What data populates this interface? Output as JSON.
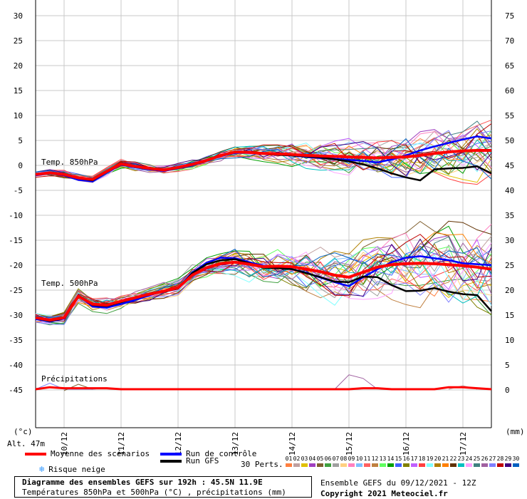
{
  "chart_data": {
    "type": "line",
    "title": "Diagramme des ensembles GEFS sur 192h : 45.5N 11.9E",
    "subtitle": "Températures 850hPa et 500hPa (°C) , précipitations (mm)",
    "run_label": "Ensemble GEFS du 09/12/2021 - 12Z",
    "copyright": "Copyright 2021 Meteociel.fr",
    "altitude_label": "Alt. 47m",
    "left_unit": "(°c)",
    "right_unit": "(mm)",
    "left_axis_ticks": [
      30,
      25,
      20,
      15,
      10,
      5,
      0,
      -5,
      -10,
      -15,
      -20,
      -25,
      -30,
      -35,
      -40,
      -45
    ],
    "right_axis_ticks": [
      75,
      70,
      65,
      60,
      55,
      50,
      45,
      40,
      35,
      30,
      25,
      20,
      15,
      10,
      5,
      0
    ],
    "date_labels": [
      "10/12",
      "11/12",
      "12/12",
      "13/12",
      "14/12",
      "15/12",
      "16/12",
      "17/12"
    ],
    "x_hours_range": [
      0,
      192
    ],
    "date_hours": [
      12,
      36,
      60,
      84,
      108,
      132,
      156,
      180
    ],
    "panel_labels": {
      "t850": "Temp. 850hPa",
      "t500": "Temp. 500hPa",
      "precip": "Précipitations"
    },
    "x": [
      0,
      6,
      12,
      18,
      24,
      30,
      36,
      42,
      48,
      54,
      60,
      66,
      72,
      78,
      84,
      90,
      96,
      102,
      108,
      114,
      120,
      126,
      132,
      138,
      144,
      150,
      156,
      162,
      168,
      174,
      180,
      186,
      192
    ],
    "t850": {
      "mean": [
        -1.8,
        -1.5,
        -1.8,
        -2.5,
        -2.8,
        -1.2,
        0.3,
        -0.2,
        -0.6,
        -0.9,
        -0.4,
        0.2,
        1.0,
        2.0,
        2.7,
        2.6,
        2.4,
        2.3,
        2.2,
        2.0,
        1.9,
        1.8,
        1.7,
        1.6,
        1.5,
        1.6,
        1.7,
        2.0,
        2.4,
        2.7,
        2.9,
        3.0,
        3.0
      ],
      "control": [
        -2.0,
        -1.6,
        -2.0,
        -2.9,
        -3.2,
        -1.4,
        0.1,
        -0.4,
        -0.8,
        -1.1,
        -0.6,
        0.0,
        0.9,
        1.9,
        2.5,
        2.5,
        2.3,
        2.2,
        2.0,
        1.7,
        1.5,
        1.3,
        1.1,
        0.9,
        0.6,
        1.2,
        2.0,
        3.0,
        3.8,
        4.5,
        5.2,
        5.8,
        5.4
      ],
      "gfs": [
        -1.8,
        -1.5,
        -1.9,
        -2.6,
        -3.0,
        -1.3,
        0.2,
        -0.3,
        -0.7,
        -1.0,
        -0.5,
        0.1,
        0.9,
        1.9,
        2.6,
        2.6,
        2.3,
        2.1,
        2.0,
        1.8,
        1.6,
        1.2,
        0.8,
        0.2,
        -0.6,
        -1.6,
        -2.4,
        -3.0,
        -0.8,
        -0.6,
        -0.5,
        -0.2,
        -1.6
      ]
    },
    "t500": {
      "mean": [
        -30.5,
        -31.0,
        -30.5,
        -26.2,
        -27.8,
        -28.0,
        -27.2,
        -26.5,
        -25.8,
        -25.2,
        -24.5,
        -22.0,
        -20.5,
        -19.7,
        -19.4,
        -19.8,
        -20.3,
        -20.2,
        -20.3,
        -20.8,
        -21.3,
        -22.0,
        -22.4,
        -21.4,
        -20.4,
        -19.9,
        -19.7,
        -19.6,
        -19.7,
        -19.9,
        -20.1,
        -20.4,
        -20.8
      ],
      "control": [
        -30.8,
        -31.3,
        -30.7,
        -26.0,
        -28.3,
        -28.5,
        -27.8,
        -27.0,
        -26.0,
        -25.2,
        -24.6,
        -21.5,
        -19.5,
        -18.5,
        -18.6,
        -19.4,
        -20.1,
        -20.4,
        -20.8,
        -21.5,
        -22.5,
        -23.4,
        -24.2,
        -22.4,
        -20.8,
        -19.4,
        -18.5,
        -18.2,
        -18.6,
        -19.0,
        -19.6,
        -19.8,
        -20.0
      ],
      "gfs": [
        -30.6,
        -31.2,
        -30.6,
        -26.1,
        -28.0,
        -28.2,
        -27.4,
        -26.6,
        -25.9,
        -25.3,
        -24.7,
        -21.6,
        -19.8,
        -19.0,
        -18.8,
        -19.6,
        -20.5,
        -20.6,
        -20.8,
        -21.6,
        -22.4,
        -23.3,
        -23.4,
        -22.3,
        -22.4,
        -24.0,
        -25.2,
        -25.1,
        -24.6,
        -25.3,
        -25.8,
        -26.0,
        -29.2
      ]
    },
    "precip": {
      "mean": [
        0,
        0.2,
        0.1,
        0.1,
        0.1,
        0.1,
        0,
        0,
        0,
        0,
        0,
        0,
        0,
        0,
        0,
        0,
        0,
        0,
        0,
        0,
        0,
        0,
        0,
        0.1,
        0.1,
        0,
        0,
        0,
        0,
        0.2,
        0.2,
        0.1,
        0
      ]
    },
    "legend": {
      "mean": "Moyenne des scénarios",
      "control": "Run de contrôle",
      "gfs": "Run GFS",
      "snow": "Risque neige",
      "perts": "30 Perts."
    },
    "colors": {
      "mean": "#ff0000",
      "control": "#0000ff",
      "gfs": "#000000",
      "snow_icon": "#3399ff"
    },
    "perturbation_labels": [
      "01",
      "02",
      "03",
      "04",
      "05",
      "06",
      "07",
      "08",
      "09",
      "10",
      "11",
      "12",
      "13",
      "14",
      "15",
      "16",
      "17",
      "18",
      "19",
      "20",
      "21",
      "22",
      "23",
      "24",
      "25",
      "26",
      "27",
      "28",
      "29",
      "30"
    ],
    "perturbation_colors": [
      "#ff8040",
      "#c0a0a0",
      "#e0c000",
      "#a040c0",
      "#806030",
      "#40a040",
      "#a0a0a0",
      "#ffd080",
      "#ff80c0",
      "#80c0ff",
      "#ff6060",
      "#c08040",
      "#60ff60",
      "#00a000",
      "#4060ff",
      "#808000",
      "#c060ff",
      "#ff4040",
      "#80ffff",
      "#b08000",
      "#ff8000",
      "#603000",
      "#00c0c0",
      "#ffa0ff",
      "#408080",
      "#a060a0",
      "#8080ff",
      "#c00000",
      "#400080",
      "#0060c0"
    ],
    "grid": true
  }
}
